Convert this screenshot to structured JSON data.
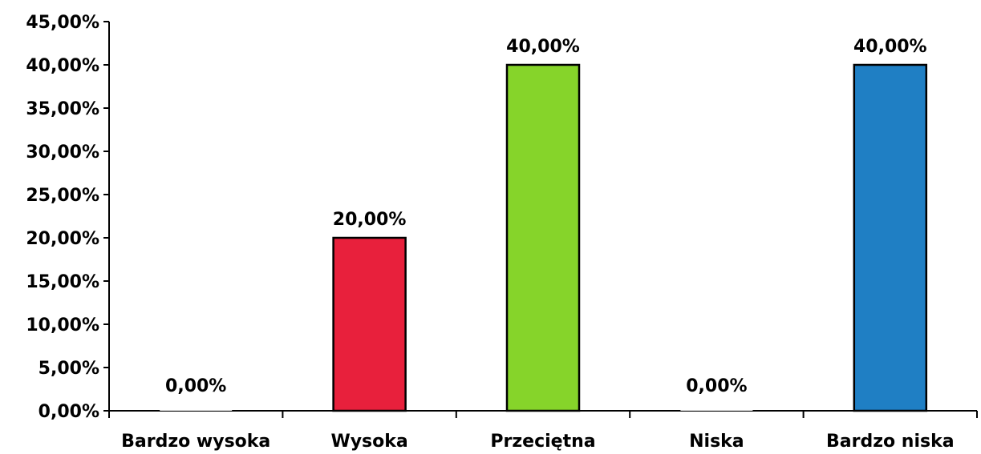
{
  "chart_data": {
    "type": "bar",
    "categories": [
      "Bardzo wysoka",
      "Wysoka",
      "Przeciętna",
      "Niska",
      "Bardzo niska"
    ],
    "values": [
      0,
      20,
      40,
      0,
      40
    ],
    "data_labels": [
      "0,00%",
      "20,00%",
      "40,00%",
      "0,00%",
      "40,00%"
    ],
    "bar_colors": [
      "#e8e8e8",
      "#e8203c",
      "#86d42a",
      "#e8e8e8",
      "#1f7fc4"
    ],
    "ylim": [
      0,
      45
    ],
    "yticks": [
      0,
      5,
      10,
      15,
      20,
      25,
      30,
      35,
      40,
      45
    ],
    "ytick_labels": [
      "0,00%",
      "5,00%",
      "10,00%",
      "15,00%",
      "20,00%",
      "25,00%",
      "30,00%",
      "35,00%",
      "40,00%",
      "45,00%"
    ],
    "grid": false,
    "legend": "none",
    "title": "",
    "xlabel": "",
    "ylabel": ""
  }
}
